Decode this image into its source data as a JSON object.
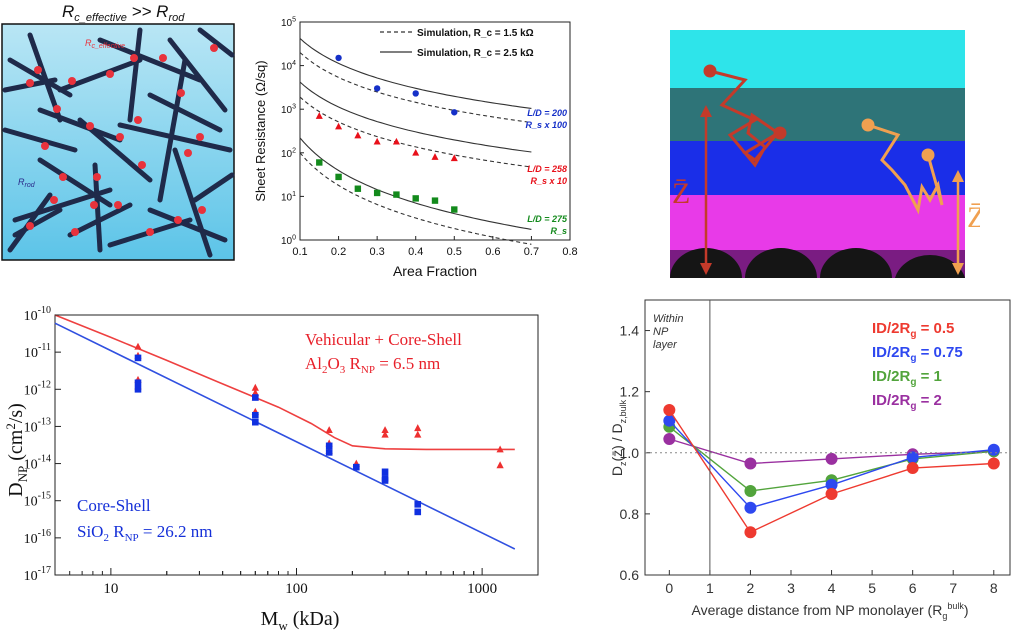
{
  "chart_data": [
    {
      "id": "network",
      "type": "diagram",
      "title": "R c_effective >> R rod",
      "labels": {
        "junction": "Rc_effective",
        "rod": "Rrod"
      },
      "colors": {
        "bg_top": "#b9e6f5",
        "bg_bottom": "#5cc4e8",
        "rod": "#1f2a4a",
        "junction": "#e8323c"
      }
    },
    {
      "id": "sheet",
      "type": "scatter",
      "xlabel": "Area Fraction",
      "ylabel": "Sheet Resistance (Ω/sq)",
      "xlim": [
        0.1,
        0.8
      ],
      "ylim_exp": [
        0,
        5
      ],
      "x_ticks": [
        "0.1",
        "0.2",
        "0.3",
        "0.4",
        "0.5",
        "0.6",
        "0.7",
        "0.8"
      ],
      "y_ticks": [
        "10^0",
        "10^1",
        "10^2",
        "10^3",
        "10^4",
        "10^5"
      ],
      "legend": [
        {
          "label": "Simulation, R_c = 1.5 kΩ",
          "style": "dashed"
        },
        {
          "label": "Simulation, R_c = 2.5 kΩ",
          "style": "solid"
        }
      ],
      "series": [
        {
          "name": "L/D = 200",
          "scale": "R_s x 100",
          "color": "#1530c8",
          "marker": "circle",
          "x": [
            0.2,
            0.3,
            0.4,
            0.5
          ],
          "y": [
            15000,
            3000,
            2300,
            850
          ]
        },
        {
          "name": "L/D = 258",
          "scale": "R_s x 10",
          "color": "#e8101a",
          "marker": "triangle",
          "x": [
            0.15,
            0.2,
            0.25,
            0.3,
            0.35,
            0.4,
            0.45,
            0.5
          ],
          "y": [
            700,
            400,
            250,
            180,
            180,
            100,
            80,
            75
          ]
        },
        {
          "name": "L/D = 275",
          "scale": "R_s",
          "color": "#138a1c",
          "marker": "square",
          "x": [
            0.15,
            0.2,
            0.25,
            0.3,
            0.35,
            0.4,
            0.45,
            0.5
          ],
          "y": [
            60,
            28,
            15,
            12,
            11,
            9,
            8,
            5
          ]
        }
      ],
      "fits": [
        {
          "series": "L/D = 200",
          "solid": 42000,
          "dashed": 20000,
          "x0": 0.1,
          "k": 0.65
        },
        {
          "series": "L/D = 258",
          "solid": 4200,
          "dashed": 1900,
          "x0": 0.1,
          "k": 0.65
        },
        {
          "series": "L/D = 275",
          "solid": 220,
          "dashed": 100,
          "x0": 0.1,
          "k": 0.85
        }
      ]
    },
    {
      "id": "layers",
      "type": "diagram",
      "labels": {
        "zbar_left": "Z̄",
        "zbar_right": "Z̄"
      },
      "colors": {
        "cyan": "#2ee4ea",
        "teal": "#2e7478",
        "blue": "#1a2ee8",
        "magenta": "#e83ae8",
        "purple": "#7a1c82",
        "np": "#151515",
        "red_path": "#c43a2a",
        "orange_path": "#f0a050"
      }
    },
    {
      "id": "diffusion",
      "type": "scatter",
      "xlabel": "M_w (kDa)",
      "ylabel": "D_NP (cm²/s)",
      "xlim": [
        5,
        2000
      ],
      "ylim_exp": [
        -17,
        -10
      ],
      "x_ticks": [
        "10",
        "100",
        "1000"
      ],
      "y_ticks": [
        "10^-10",
        "10^-11",
        "10^-12",
        "10^-13",
        "10^-14",
        "10^-15",
        "10^-16",
        "10^-17"
      ],
      "annotations": [
        {
          "text": "Vehicular + Core-Shell",
          "color": "#e8202a"
        },
        {
          "text": "Al₂O₃ R_NP = 6.5 nm",
          "color": "#e8202a"
        },
        {
          "text": "Core-Shell",
          "color": "#1530d8"
        },
        {
          "text": "SiO₂ R_NP = 26.2 nm",
          "color": "#1530d8"
        }
      ],
      "series": [
        {
          "name": "Al2O3 (red triangles)",
          "color": "#ee3030",
          "marker": "triangle",
          "x": [
            14,
            14,
            14,
            14,
            60,
            60,
            60,
            60,
            150,
            150,
            150,
            210,
            300,
            300,
            450,
            450,
            1250,
            1250
          ],
          "y": [
            1.4e-11,
            8e-12,
            1.8e-12,
            1.2e-12,
            1.1e-12,
            8e-13,
            6e-13,
            2.5e-13,
            8e-14,
            3.5e-14,
            2.2e-14,
            1e-14,
            8e-14,
            6e-14,
            9e-14,
            6e-14,
            2.4e-14,
            9e-15
          ]
        },
        {
          "name": "SiO2 (blue squares)",
          "color": "#1030e0",
          "marker": "square",
          "x": [
            14,
            14,
            14,
            60,
            60,
            60,
            150,
            150,
            210,
            300,
            300,
            300,
            450,
            450
          ],
          "y": [
            7e-12,
            1.5e-12,
            1e-12,
            6e-13,
            2e-13,
            1.3e-13,
            3e-14,
            2e-14,
            8e-15,
            6e-15,
            4e-15,
            3.5e-15,
            8e-16,
            5e-16
          ]
        }
      ],
      "fits": [
        {
          "name": "Vehicular + Core-Shell fit",
          "color": "#ee4040",
          "x": [
            5,
            10,
            20,
            40,
            80,
            120,
            160,
            200,
            300,
            500,
            1000,
            1500
          ],
          "y": [
            1e-10,
            2.5e-11,
            6e-12,
            1.4e-12,
            3.3e-13,
            1.2e-13,
            5e-14,
            3e-14,
            2.5e-14,
            2.4e-14,
            2.4e-14,
            2.4e-14
          ]
        },
        {
          "name": "Core-Shell fit",
          "color": "#3050e0",
          "x": [
            5,
            1500
          ],
          "y": [
            6e-11,
            5e-17
          ]
        }
      ]
    },
    {
      "id": "ratio",
      "type": "line",
      "xlabel": "Average distance from NP monolayer (R_g^bulk)",
      "ylabel": "D_z(z̄) / D_z,bulk",
      "xlim": [
        -0.6,
        8.4
      ],
      "ylim": [
        0.6,
        1.5
      ],
      "x_ticks": [
        "0",
        "1",
        "2",
        "3",
        "4",
        "5",
        "6",
        "7",
        "8"
      ],
      "y_ticks": [
        "0.6",
        "0.8",
        "1.0",
        "1.2",
        "1.4"
      ],
      "region_label": [
        "Within",
        "NP",
        "layer"
      ],
      "series": [
        {
          "name": "ID/2R_g = 0.5",
          "color": "#ee3a30",
          "x": [
            0,
            2,
            4,
            6,
            8
          ],
          "y": [
            1.14,
            0.74,
            0.865,
            0.95,
            0.965
          ]
        },
        {
          "name": "ID/2R_g = 0.75",
          "color": "#2e48f0",
          "x": [
            0,
            2,
            4,
            6,
            8
          ],
          "y": [
            1.105,
            0.82,
            0.895,
            0.985,
            1.01
          ]
        },
        {
          "name": "ID/2R_g = 1",
          "color": "#52a43c",
          "x": [
            0,
            2,
            4,
            6,
            8
          ],
          "y": [
            1.085,
            0.875,
            0.91,
            0.98,
            1.005
          ]
        },
        {
          "name": "ID/2R_g = 2",
          "color": "#9a30a0",
          "x": [
            0,
            2,
            4,
            6,
            8
          ],
          "y": [
            1.045,
            0.965,
            0.98,
            0.995,
            1.005
          ]
        }
      ]
    }
  ]
}
